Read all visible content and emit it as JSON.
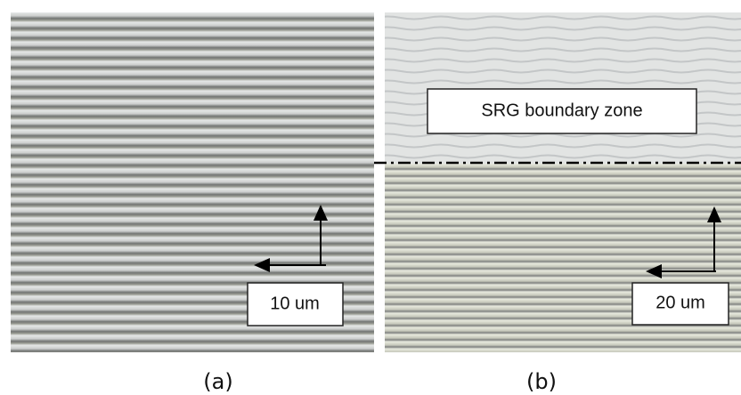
{
  "panels": [
    {
      "caption": "(a)",
      "scale_label": "10 um"
    },
    {
      "caption": "(b)",
      "scale_label": "20 um",
      "annotation": "SRG boundary  zone"
    }
  ]
}
